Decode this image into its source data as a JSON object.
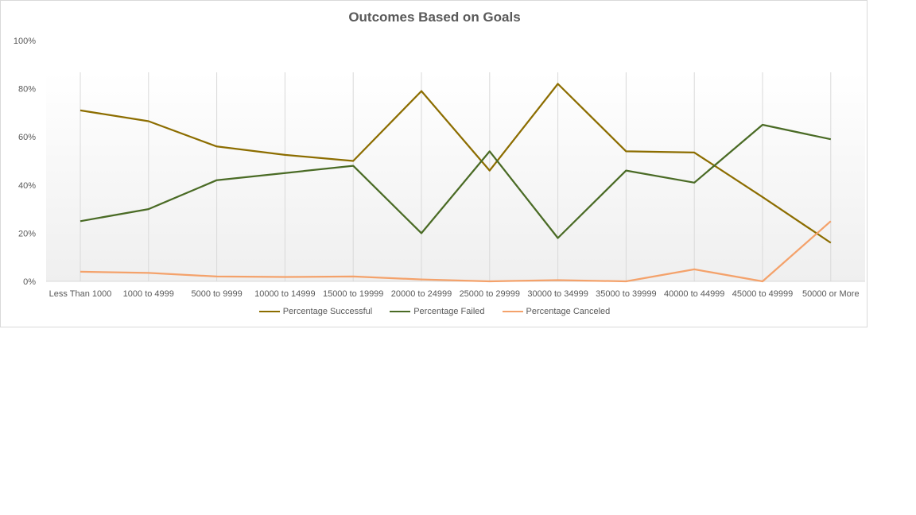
{
  "chart_data": {
    "type": "line",
    "title": "Outcomes Based on Goals",
    "categories": [
      "Less Than 1000",
      "1000 to 4999",
      "5000 to 9999",
      "10000 to 14999",
      "15000 to 19999",
      "20000 to 24999",
      "25000 to 29999",
      "30000 to 34999",
      "35000 to 39999",
      "40000 to 44999",
      "45000 to 49999",
      "50000 or More"
    ],
    "series": [
      {
        "name": "Percentage Successful",
        "color": "#8c6d00",
        "values": [
          71,
          66.5,
          56,
          52.5,
          50,
          79,
          46,
          82,
          54,
          53.5,
          35,
          16
        ]
      },
      {
        "name": "Percentage Failed",
        "color": "#4a6b25",
        "values": [
          25,
          30,
          42,
          45,
          48,
          20,
          54,
          18,
          46,
          41,
          65,
          59
        ]
      },
      {
        "name": "Percentage Canceled",
        "color": "#f4a26b",
        "values": [
          4,
          3.5,
          2,
          1.8,
          2,
          0.8,
          0,
          0.5,
          0,
          5,
          0,
          25
        ]
      }
    ],
    "ylim": [
      0,
      100
    ],
    "yticks": [
      "0%",
      "20%",
      "40%",
      "60%",
      "80%",
      "100%"
    ],
    "ytick_values": [
      0,
      20,
      40,
      60,
      80,
      100
    ],
    "legend_position": "bottom",
    "grid": "vertical"
  }
}
